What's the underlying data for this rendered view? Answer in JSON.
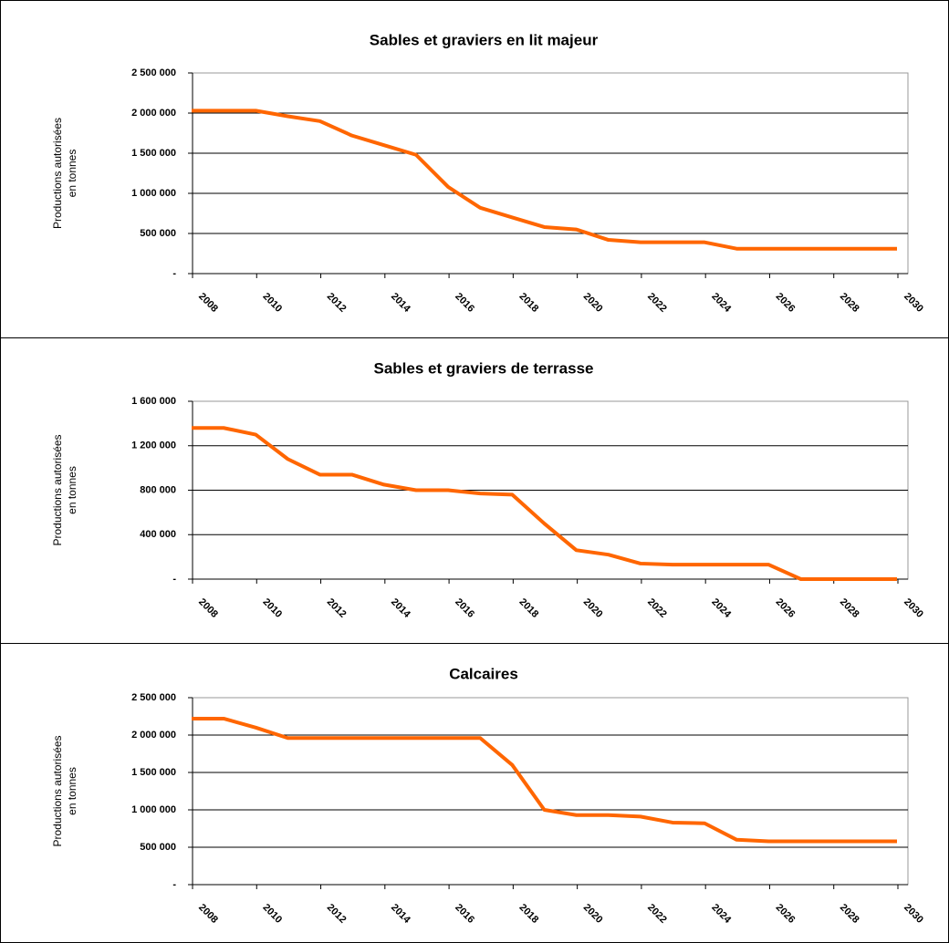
{
  "chart_data": [
    {
      "type": "line",
      "title": "Sables et graviers en lit majeur",
      "ylabel": [
        "Productions autorisées",
        "en tonnes"
      ],
      "categories": [
        "2008",
        null,
        "2010",
        null,
        "2012",
        null,
        "2014",
        null,
        "2016",
        null,
        "2018",
        null,
        "2020",
        null,
        "2022",
        null,
        "2024",
        null,
        "2026",
        null,
        "2028",
        null,
        "2030"
      ],
      "values": [
        2030000,
        2030000,
        2030000,
        1960000,
        1900000,
        1720000,
        1600000,
        1480000,
        1080000,
        820000,
        700000,
        580000,
        550000,
        420000,
        390000,
        390000,
        390000,
        310000,
        310000,
        310000,
        310000,
        310000,
        310000
      ],
      "color": "#ff6600",
      "ylim": [
        0,
        2500000
      ],
      "yticks": [
        {
          "value": 0,
          "label": "-"
        },
        {
          "value": 500000,
          "label": "500 000"
        },
        {
          "value": 1000000,
          "label": "1 000 000"
        },
        {
          "value": 1500000,
          "label": "1 500 000"
        },
        {
          "value": 2000000,
          "label": "2 000 000"
        },
        {
          "value": 2500000,
          "label": "2 500 000"
        }
      ],
      "grid": true
    },
    {
      "type": "line",
      "title": "Sables et graviers de terrasse",
      "ylabel": [
        "Productions autorisées",
        "en tonnes"
      ],
      "categories": [
        "2008",
        null,
        "2010",
        null,
        "2012",
        null,
        "2014",
        null,
        "2016",
        null,
        "2018",
        null,
        "2020",
        null,
        "2022",
        null,
        "2024",
        null,
        "2026",
        null,
        "2028",
        null,
        "2030"
      ],
      "values": [
        1360000,
        1360000,
        1300000,
        1080000,
        940000,
        940000,
        850000,
        800000,
        800000,
        770000,
        760000,
        500000,
        260000,
        220000,
        140000,
        130000,
        130000,
        130000,
        130000,
        0,
        0,
        0,
        0
      ],
      "color": "#ff6600",
      "ylim": [
        0,
        1600000
      ],
      "yticks": [
        {
          "value": 0,
          "label": "-"
        },
        {
          "value": 400000,
          "label": "400 000"
        },
        {
          "value": 800000,
          "label": "800 000"
        },
        {
          "value": 1200000,
          "label": "1 200 000"
        },
        {
          "value": 1600000,
          "label": "1 600 000"
        }
      ],
      "grid": true
    },
    {
      "type": "line",
      "title": "Calcaires",
      "ylabel": [
        "Productions autorisées",
        "en tonnes"
      ],
      "categories": [
        "2008",
        null,
        "2010",
        null,
        "2012",
        null,
        "2014",
        null,
        "2016",
        null,
        "2018",
        null,
        "2020",
        null,
        "2022",
        null,
        "2024",
        null,
        "2026",
        null,
        "2028",
        null,
        "2030"
      ],
      "values": [
        2220000,
        2220000,
        2100000,
        1960000,
        1960000,
        1960000,
        1960000,
        1960000,
        1960000,
        1960000,
        1600000,
        1000000,
        930000,
        930000,
        910000,
        830000,
        820000,
        600000,
        580000,
        580000,
        580000,
        580000,
        580000
      ],
      "color": "#ff6600",
      "ylim": [
        0,
        2500000
      ],
      "yticks": [
        {
          "value": 0,
          "label": "-"
        },
        {
          "value": 500000,
          "label": "500 000"
        },
        {
          "value": 1000000,
          "label": "1 000 000"
        },
        {
          "value": 1500000,
          "label": "1 500 000"
        },
        {
          "value": 2000000,
          "label": "2 000 000"
        },
        {
          "value": 2500000,
          "label": "2 500 000"
        }
      ],
      "grid": true
    }
  ]
}
